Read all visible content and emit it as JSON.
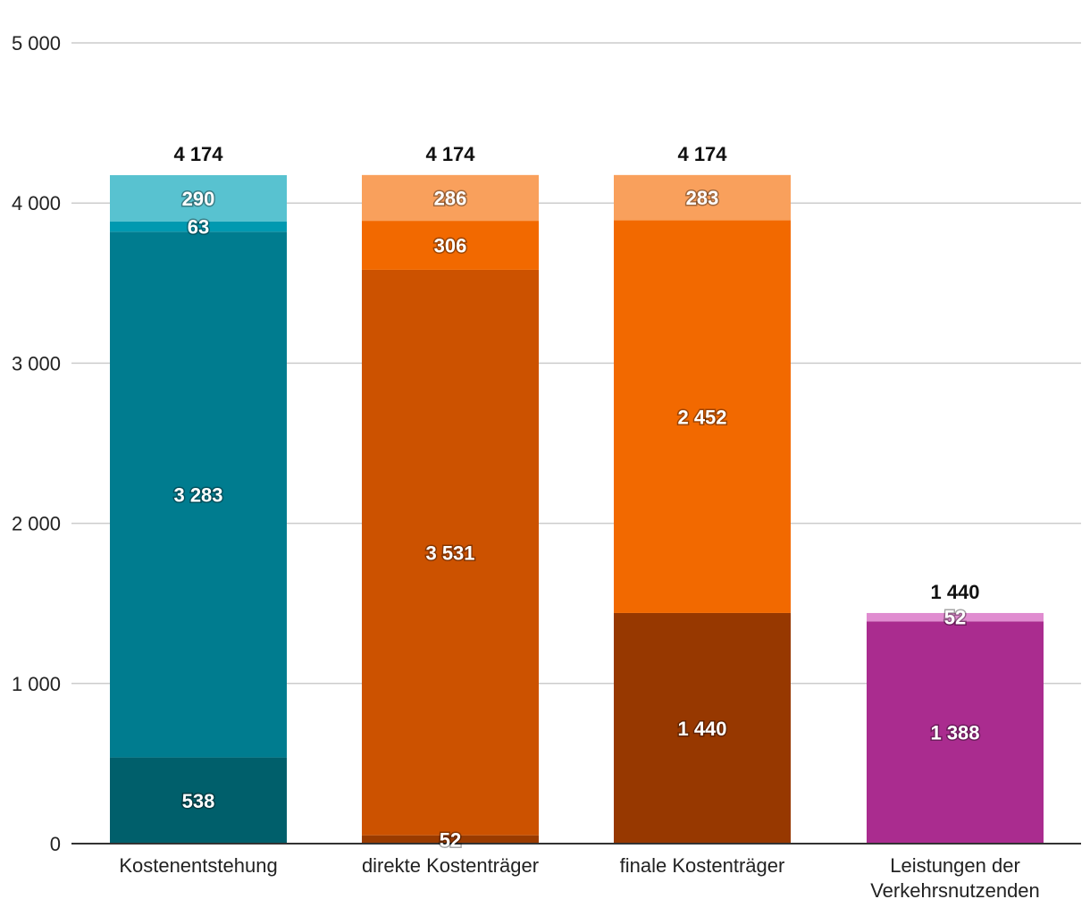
{
  "chart_data": {
    "type": "bar",
    "stacked": true,
    "title": "",
    "xlabel": "",
    "ylabel": "",
    "ylim": [
      0,
      5000
    ],
    "yticks": [
      0,
      1000,
      2000,
      3000,
      4000,
      5000
    ],
    "ytick_labels": [
      "0",
      "1 000",
      "2 000",
      "3 000",
      "4 000",
      "5 000"
    ],
    "grid": true,
    "legend": "none",
    "categories": [
      [
        "Kostenentstehung"
      ],
      [
        "direkte Kostenträger"
      ],
      [
        "finale Kostenträger"
      ],
      [
        "Leistungen der",
        "Verkehrsnutzenden"
      ]
    ],
    "bars": [
      {
        "total": 4174,
        "total_label": "4 174",
        "segments": [
          {
            "value": 538,
            "label": "538",
            "color": "#005f6b"
          },
          {
            "value": 3283,
            "label": "3 283",
            "color": "#007c8f"
          },
          {
            "value": 63,
            "label": "63",
            "color": "#0099b0"
          },
          {
            "value": 290,
            "label": "290",
            "color": "#58c2d0"
          }
        ]
      },
      {
        "total": 4174,
        "total_label": "4 174",
        "segments": [
          {
            "value": 52,
            "label": "52",
            "color": "#9a3b00"
          },
          {
            "value": 3531,
            "label": "3 531",
            "color": "#cc5200"
          },
          {
            "value": 306,
            "label": "306",
            "color": "#f26900"
          },
          {
            "value": 286,
            "label": "286",
            "color": "#f9a05c"
          }
        ]
      },
      {
        "total": 4174,
        "total_label": "4 174",
        "segments": [
          {
            "value": 1440,
            "label": "1 440",
            "color": "#973800"
          },
          {
            "value": 2452,
            "label": "2 452",
            "color": "#f26900"
          },
          {
            "value": 283,
            "label": "283",
            "color": "#f9a05c"
          }
        ]
      },
      {
        "total": 1440,
        "total_label": "1 440",
        "segments": [
          {
            "value": 1388,
            "label": "1 388",
            "color": "#aa2c8f"
          },
          {
            "value": 52,
            "label": "52",
            "color": "#e08cd0"
          }
        ]
      }
    ],
    "colors": {
      "grid": "#cccccc",
      "axis": "#333333"
    }
  }
}
